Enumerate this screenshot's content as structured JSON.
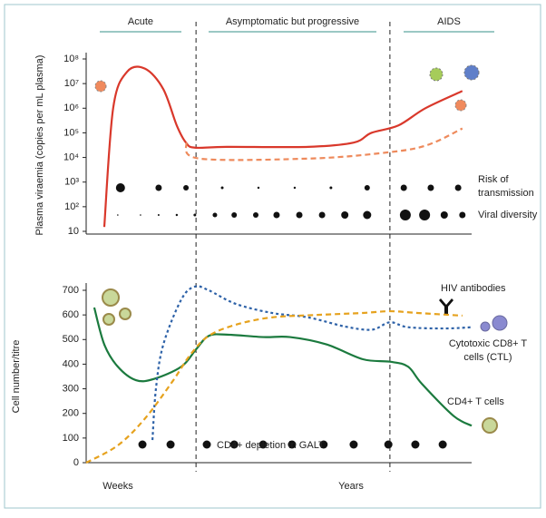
{
  "phases": [
    "Acute",
    "Asymptomatic but progressive",
    "AIDS"
  ],
  "phase_boundaries": [
    28.5,
    78.8
  ],
  "chart_data": [
    {
      "type": "line",
      "ylabel": "Plasma viraemia (copies per mL plasma)",
      "log": true,
      "xlim": [
        0,
        100
      ],
      "ylim": [
        10,
        100000000
      ],
      "yticks": [
        10,
        {
          "value": 100,
          "label": "10²"
        },
        {
          "value": 1000,
          "label": "10³"
        },
        {
          "value": 10000,
          "label": "10⁴"
        },
        {
          "value": 100000,
          "label": "10⁵"
        },
        {
          "value": 1000000,
          "label": "10⁶"
        },
        {
          "value": 10000000,
          "label": "10⁷"
        },
        {
          "value": 100000000,
          "label": "10⁸"
        }
      ],
      "series": [
        {
          "color": "#d9382b",
          "style": "solid",
          "x": [
            4.7,
            7,
            10.6,
            15.3,
            20,
            23.5,
            25.9,
            28.2,
            36.5,
            57.6,
            69.4,
            74,
            81,
            88,
            97.6
          ],
          "values": [
            15,
            1000000,
            30000000,
            40000000,
            6000000,
            200000,
            40000,
            25000,
            27000,
            27000,
            40000,
            100000,
            200000,
            1000000,
            5000000
          ]
        },
        {
          "color": "#ee8a5c",
          "style": "dashed",
          "x": [
            25.9,
            29.4,
            57.6,
            76.5,
            88,
            97.6
          ],
          "values": [
            40000,
            9000,
            9000,
            15000,
            30000,
            150000
          ]
        }
      ],
      "dot_rows": [
        {
          "label": "Risk of transmission",
          "x": [
            8.9,
            18.8,
            25.9,
            35.3,
            44.7,
            54.1,
            63.5,
            72.9,
            82.4,
            89.4,
            96.5
          ],
          "sizes": [
            5,
            3.5,
            3,
            1.5,
            1.2,
            1.2,
            1.5,
            3,
            3.5,
            3.5,
            3.5
          ]
        },
        {
          "label": "Viral diversity",
          "x": [
            8.2,
            14.1,
            18.8,
            23.5,
            28.2,
            33.4,
            38.4,
            44,
            49.4,
            55.3,
            61.2,
            67.1,
            72.9,
            82.8,
            87.8,
            92.9,
            97.6
          ],
          "sizes": [
            0.8,
            0.8,
            1,
            1.2,
            1.5,
            2.5,
            3,
            3,
            3.5,
            3.5,
            3.5,
            4,
            4.5,
            6,
            6,
            4,
            3.5
          ]
        }
      ]
    },
    {
      "type": "line",
      "ylabel": "Cell number/titre",
      "log": false,
      "xlim": [
        0,
        100
      ],
      "ylim": [
        0,
        700
      ],
      "yticks": [
        0,
        100,
        200,
        300,
        400,
        500,
        600,
        700
      ],
      "series": [
        {
          "name": "CD4+ T cells",
          "color": "#1b7a3e",
          "style": "solid",
          "x": [
            2.1,
            4.7,
            8.2,
            12.9,
            17.6,
            24.7,
            28.5,
            31.8,
            36.5,
            45.9,
            52.9,
            62.4,
            71.8,
            78.8,
            83.5,
            87.1,
            95.3,
            100
          ],
          "values": [
            630,
            480,
            390,
            335,
            340,
            390,
            460,
            515,
            520,
            510,
            510,
            480,
            420,
            410,
            390,
            320,
            190,
            150
          ]
        },
        {
          "name": "Cytotoxic CD8+ T cells (CTL)",
          "color": "#2e62a8",
          "style": "dotted",
          "x": [
            17.2,
            18.1,
            20,
            24.7,
            28.2,
            31.8,
            38.8,
            48.2,
            57.6,
            67.1,
            74.1,
            78.8,
            83.5,
            92.9,
            100
          ],
          "values": [
            92,
            300,
            479,
            663,
            715,
            700,
            645,
            608,
            590,
            553,
            540,
            570,
            550,
            545,
            550
          ]
        },
        {
          "name": "HIV antibodies",
          "color": "#e6a21e",
          "style": "dashed",
          "x": [
            0,
            8.2,
            15.3,
            22.4,
            27.1,
            31.8,
            38.8,
            48.2,
            60,
            71.8,
            78.8,
            85.9,
            97.6
          ],
          "values": [
            0,
            70,
            180,
            330,
            440,
            515,
            560,
            590,
            600,
            608,
            615,
            608,
            597
          ]
        }
      ],
      "dot_rows": [
        {
          "label": "CD4+ depletion in GALT",
          "x": [
            14.6,
            21.9,
            31.3,
            38.4,
            45.9,
            53.4,
            61.6,
            69.4,
            78.4,
            85.4,
            92.5
          ],
          "sizes": [
            4.5,
            4.5,
            4.5,
            4.5,
            4.5,
            4.5,
            4.5,
            4.5,
            4.5,
            4.5,
            4.5
          ]
        }
      ],
      "annotations": [
        "Weeks",
        "Years"
      ]
    }
  ]
}
